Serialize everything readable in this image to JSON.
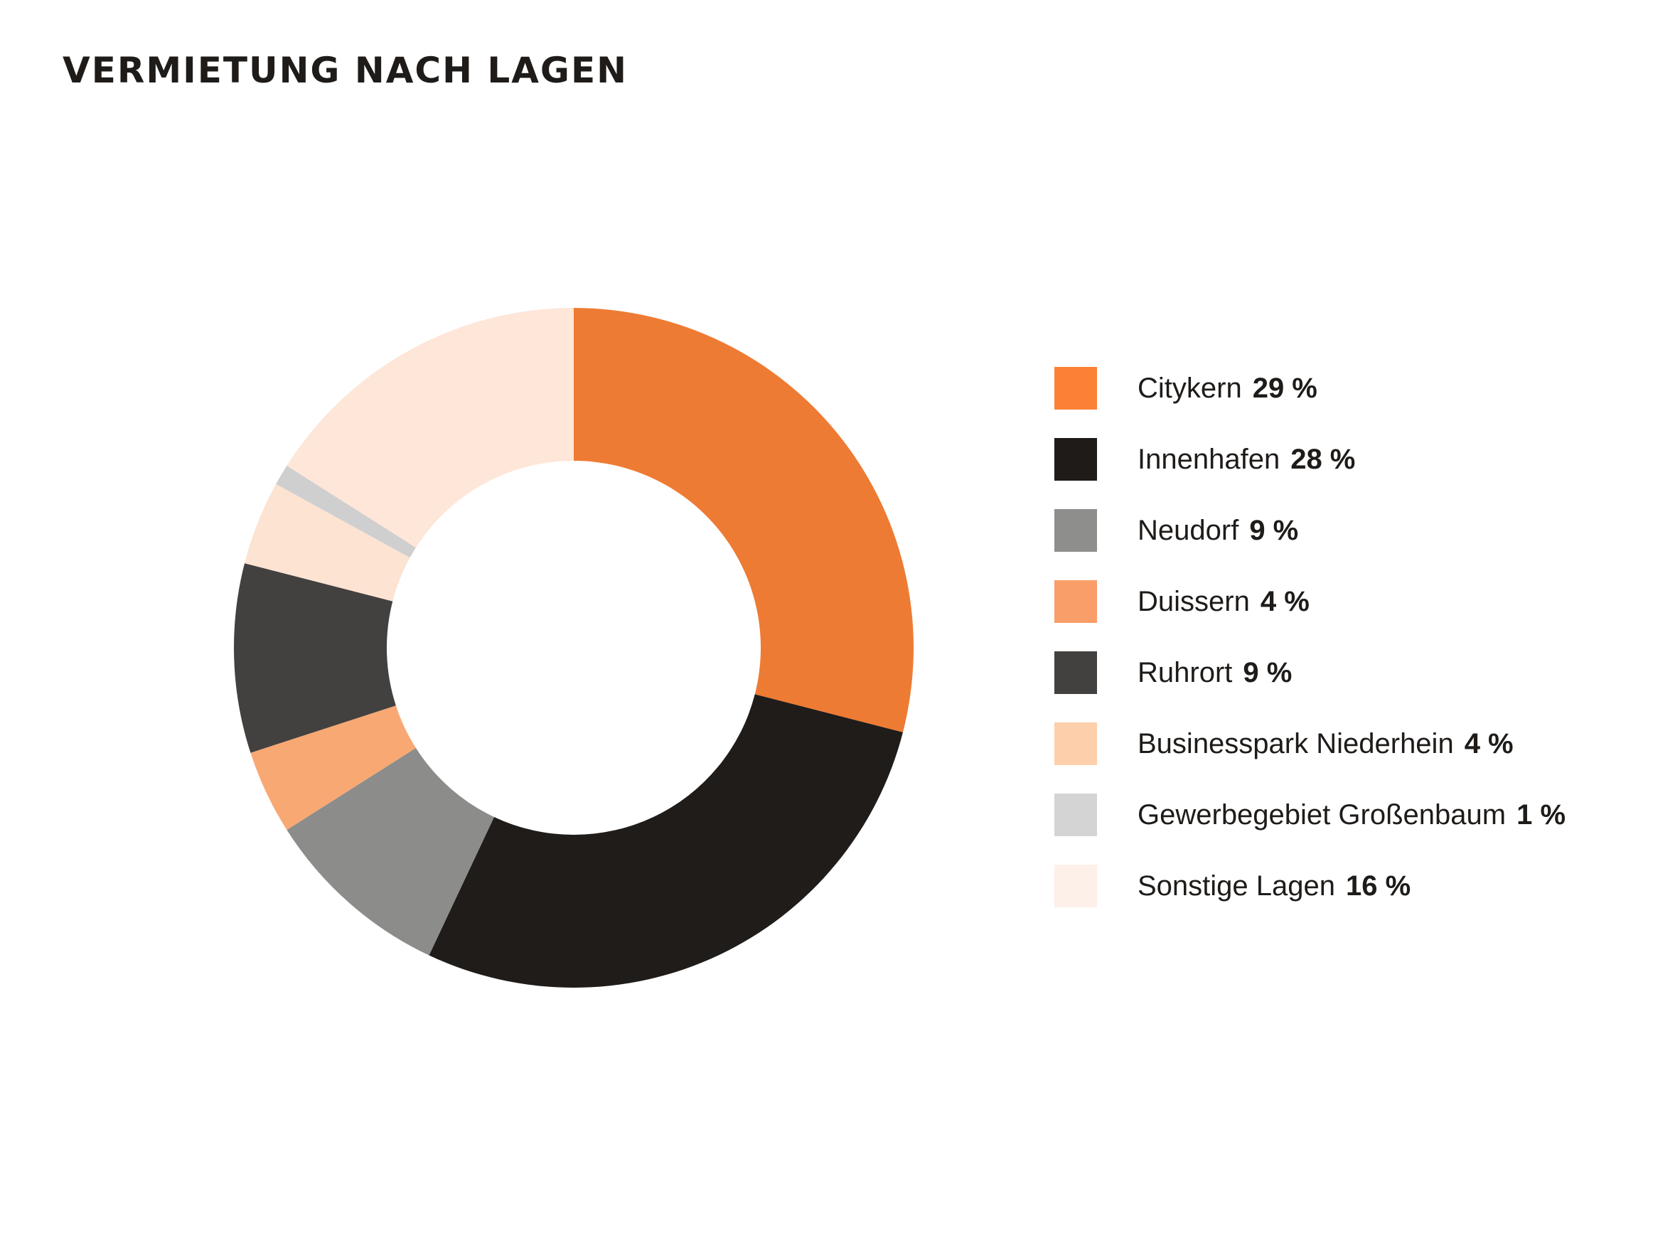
{
  "title": "VERMIETUNG NACH LAGEN",
  "colors": {
    "background": "#ffffff",
    "text": "#1e1b19",
    "accent_orange": "#fb8137"
  },
  "chart_data": {
    "type": "pie",
    "subtype": "donut",
    "title": "VERMIETUNG NACH LAGEN",
    "unit": "%",
    "total": 100,
    "start_angle_deg": 0,
    "direction": "clockwise",
    "inner_radius_ratio": 0.55,
    "legend_position": "right",
    "categories": [
      "Citykern",
      "Innenhafen",
      "Neudorf",
      "Duissern",
      "Ruhrort",
      "Businesspark Niederhein",
      "Gewerbegebiet Großenbaum",
      "Sonstige Lagen"
    ],
    "values": [
      29,
      28,
      9,
      4,
      9,
      4,
      1,
      16
    ],
    "value_labels": [
      "29 %",
      "28 %",
      "9 %",
      "4 %",
      "9 %",
      "4 %",
      "1 %",
      "16 %"
    ],
    "slice_colors": [
      "#ee7b33",
      "#1f1c1a",
      "#8c8c8a",
      "#f8a873",
      "#434140",
      "#fce3d2",
      "#cfcfcf",
      "#fee6d8"
    ],
    "swatch_colors": [
      "#fb8137",
      "#1e1b19",
      "#8e8e8c",
      "#fa9e69",
      "#434140",
      "#fecfab",
      "#d4d4d4",
      "#fdf0e8"
    ]
  }
}
